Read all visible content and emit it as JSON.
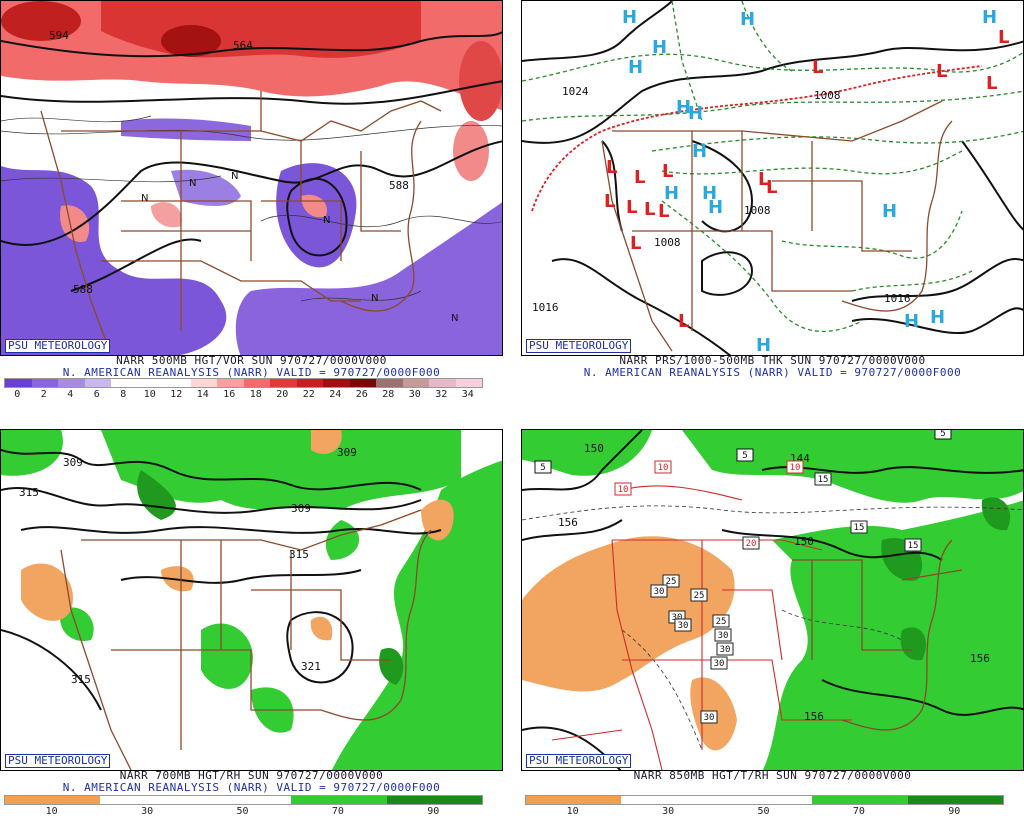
{
  "branding": "PSU METEOROLOGY",
  "panels": [
    {
      "id": "vor500",
      "title": "NARR 500MB HGT/VOR SUN 970727/0000V000",
      "subtitle": "N. AMERICAN REANALYSIS (NARR) VALID = 970727/0000F000",
      "contour_labels": [
        "588",
        "588",
        "594",
        "576",
        "564",
        "588"
      ],
      "vort_marks": [
        "N",
        "N",
        "N",
        "N",
        "N",
        "N",
        "X",
        "X"
      ],
      "colorbar": {
        "ticks": [
          "0",
          "2",
          "4",
          "6",
          "8",
          "10",
          "12",
          "14",
          "16",
          "18",
          "20",
          "22",
          "24",
          "26",
          "28",
          "30",
          "32",
          "34"
        ],
        "colors": [
          "#6a3fd1",
          "#8a64dd",
          "#a98be6",
          "#c9b8f0",
          "#ffffff",
          "#ffffff",
          "#ffffff",
          "#ffd6d6",
          "#ff9e9e",
          "#f56a6a",
          "#e23a3a",
          "#c81e1e",
          "#a30f0f",
          "#7d0606",
          "#a07070",
          "#c79a9a",
          "#e8b8c8",
          "#f7d0e0"
        ]
      }
    },
    {
      "id": "prs",
      "title": "NARR PRS/1000-500MB THK SUN 970727/0000V000",
      "subtitle": "N. AMERICAN REANALYSIS (NARR) VALID = 970727/0000F000",
      "isobar_labels": [
        "1024",
        "1008",
        "1008",
        "1008",
        "1016",
        "1016",
        "1016",
        "1008",
        "1016"
      ],
      "H_color": "#2aa8e0",
      "L_color": "#e02020"
    },
    {
      "id": "rh700",
      "title": "NARR 700MB HGT/RH SUN 970727/0000V000",
      "subtitle": "N. AMERICAN REANALYSIS (NARR) VALID = 970727/0000F000",
      "contour_labels": [
        "309",
        "309",
        "309",
        "315",
        "315",
        "315",
        "321"
      ],
      "colorbar": {
        "ticks": [
          "10",
          "30",
          "50",
          "70",
          "90"
        ],
        "colors": [
          "#f0a050",
          "#ffffff",
          "#ffffff",
          "#33cc33",
          "#1a8a1a"
        ]
      }
    },
    {
      "id": "rh850",
      "title": "NARR 850MB HGT/T/RH SUN 970727/0000V000",
      "contour_labels": [
        "150",
        "156",
        "144",
        "150",
        "156",
        "156"
      ],
      "temp_boxes": [
        "5",
        "5",
        "5",
        "10",
        "10",
        "10",
        "15",
        "15",
        "15",
        "20",
        "25",
        "25",
        "25",
        "30",
        "30",
        "30",
        "30",
        "30",
        "30",
        "30"
      ],
      "colorbar": {
        "ticks": [
          "10",
          "30",
          "50",
          "70",
          "90"
        ],
        "colors": [
          "#f0a050",
          "#ffffff",
          "#ffffff",
          "#33cc33",
          "#1a8a1a"
        ]
      }
    }
  ]
}
